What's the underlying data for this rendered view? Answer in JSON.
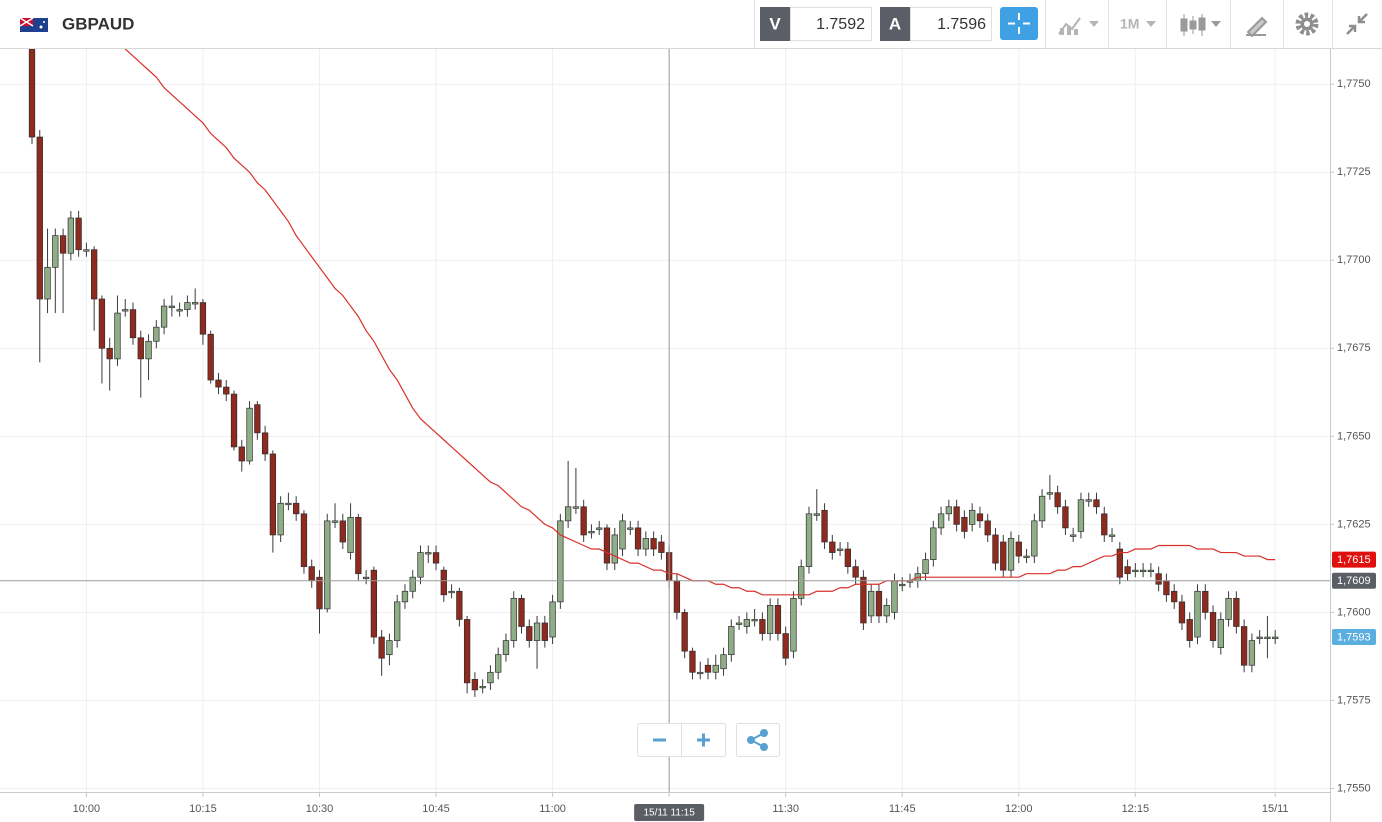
{
  "header": {
    "symbol": "GBPAUD",
    "bid_label": "V",
    "bid": "1.7592",
    "ask_label": "A",
    "ask": "1.7596",
    "timeframe": "1M"
  },
  "chart_data": {
    "type": "candlestick",
    "up_color": "#8fae87",
    "down_color": "#8e2a1e",
    "grid": true,
    "categories": [
      null,
      null,
      null,
      null,
      null,
      null,
      null,
      "10:00",
      null,
      null,
      null,
      null,
      null,
      null,
      null,
      null,
      null,
      null,
      null,
      null,
      null,
      null,
      "10:15",
      null,
      null,
      null,
      null,
      null,
      null,
      null,
      null,
      null,
      null,
      null,
      null,
      null,
      null,
      "10:30",
      null,
      null,
      null,
      null,
      null,
      null,
      null,
      null,
      null,
      null,
      null,
      null,
      null,
      null,
      "10:45",
      null,
      null,
      null,
      null,
      null,
      null,
      null,
      null,
      null,
      null,
      null,
      null,
      null,
      null,
      "11:00",
      null,
      null,
      null,
      null,
      null,
      null,
      null,
      null,
      null,
      null,
      null,
      null,
      null,
      null,
      "11:15",
      null,
      null,
      null,
      null,
      null,
      null,
      null,
      null,
      null,
      null,
      null,
      null,
      null,
      null,
      "11:30",
      null,
      null,
      null,
      null,
      null,
      null,
      null,
      null,
      null,
      null,
      null,
      null,
      null,
      null,
      "11:45",
      null,
      null,
      null,
      null,
      null,
      null,
      null,
      null,
      null,
      null,
      null,
      null,
      null,
      null,
      "12:00",
      null,
      null,
      null,
      null,
      null,
      null,
      null,
      null,
      null,
      null,
      null,
      null,
      null,
      null,
      "12:15",
      null,
      null,
      null,
      null,
      null,
      null,
      null,
      null,
      null,
      null,
      null,
      null,
      null,
      null,
      null,
      null,
      null,
      "15/11"
    ],
    "open": [
      1.776,
      1.7735,
      1.7689,
      1.7698,
      1.7707,
      1.7702,
      1.7712,
      1.7703,
      1.7703,
      1.7689,
      1.7675,
      1.7672,
      1.7686,
      1.7686,
      1.7678,
      1.7672,
      1.7677,
      1.7681,
      1.7687,
      1.7686,
      1.7686,
      1.7688,
      1.7688,
      1.7679,
      1.7666,
      1.7664,
      1.7662,
      1.7647,
      1.7643,
      1.7659,
      1.7651,
      1.7645,
      1.7622,
      1.7631,
      1.7631,
      1.7628,
      1.7613,
      1.761,
      1.7601,
      1.7626,
      1.7626,
      1.7617,
      1.7627,
      1.761,
      1.7612,
      1.7593,
      1.7588,
      1.7592,
      1.7603,
      1.7606,
      1.761,
      1.7617,
      1.7617,
      1.7612,
      1.7606,
      1.7606,
      1.7598,
      1.7581,
      1.7579,
      1.758,
      1.7583,
      1.7588,
      1.7592,
      1.7604,
      1.7596,
      1.7592,
      1.7597,
      1.7593,
      1.7603,
      1.7626,
      1.763,
      1.763,
      1.7623,
      1.7624,
      1.7624,
      1.7614,
      1.7618,
      1.7624,
      1.7624,
      1.7618,
      1.7621,
      1.762,
      1.7617,
      1.7609,
      1.76,
      1.7589,
      1.7583,
      1.7585,
      1.7583,
      1.7584,
      1.7588,
      1.7597,
      1.7596,
      1.7598,
      1.7598,
      1.7594,
      1.7602,
      1.7594,
      1.7589,
      1.7604,
      1.7613,
      1.7628,
      1.7629,
      1.762,
      1.7618,
      1.7618,
      1.7613,
      1.761,
      1.7599,
      1.7606,
      1.7599,
      1.76,
      1.7608,
      1.7609,
      1.7609,
      1.7611,
      1.7615,
      1.7624,
      1.7628,
      1.763,
      1.7627,
      1.7625,
      1.7628,
      1.7626,
      1.7622,
      1.762,
      1.7612,
      1.762,
      1.7616,
      1.7616,
      1.7626,
      1.7634,
      1.7634,
      1.763,
      1.7622,
      1.7623,
      1.7632,
      1.7632,
      1.7628,
      1.7622,
      1.7618,
      1.7613,
      1.7612,
      1.7612,
      1.7612,
      1.7611,
      1.7609,
      1.7606,
      1.7603,
      1.7598,
      1.7593,
      1.7606,
      1.76,
      1.759,
      1.7598,
      1.7604,
      1.7596,
      1.7585,
      1.7593,
      1.7593,
      1.7593
    ],
    "high": [
      1.7762,
      1.7737,
      1.7709,
      1.7709,
      1.7709,
      1.7714,
      1.7714,
      1.7705,
      1.7704,
      1.769,
      1.7678,
      1.769,
      1.7689,
      1.7688,
      1.768,
      1.7679,
      1.7683,
      1.7689,
      1.769,
      1.7688,
      1.769,
      1.7692,
      1.7689,
      1.768,
      1.7668,
      1.7666,
      1.7663,
      1.7649,
      1.766,
      1.766,
      1.7653,
      1.7646,
      1.7633,
      1.7634,
      1.7633,
      1.7629,
      1.7615,
      1.7612,
      1.7628,
      1.7631,
      1.7628,
      1.7631,
      1.7628,
      1.7612,
      1.7613,
      1.7595,
      1.7594,
      1.7605,
      1.7608,
      1.7612,
      1.7619,
      1.7619,
      1.7619,
      1.7613,
      1.7608,
      1.7607,
      1.7599,
      1.7583,
      1.7581,
      1.7585,
      1.759,
      1.7594,
      1.7606,
      1.7605,
      1.7598,
      1.7599,
      1.7599,
      1.7605,
      1.7628,
      1.7643,
      1.7641,
      1.7632,
      1.7625,
      1.7626,
      1.7625,
      1.7624,
      1.7628,
      1.7626,
      1.7626,
      1.7623,
      1.7623,
      1.7622,
      1.7619,
      1.7611,
      1.7601,
      1.759,
      1.7586,
      1.7587,
      1.7588,
      1.759,
      1.7598,
      1.7599,
      1.76,
      1.7601,
      1.76,
      1.7604,
      1.7604,
      1.7596,
      1.7606,
      1.7615,
      1.763,
      1.7635,
      1.7631,
      1.7622,
      1.762,
      1.762,
      1.7615,
      1.7612,
      1.7608,
      1.7608,
      1.7604,
      1.7611,
      1.761,
      1.7611,
      1.7613,
      1.7617,
      1.7626,
      1.763,
      1.7632,
      1.7632,
      1.7629,
      1.7631,
      1.763,
      1.7628,
      1.7624,
      1.7622,
      1.7623,
      1.7622,
      1.7618,
      1.7628,
      1.7635,
      1.7639,
      1.7636,
      1.7632,
      1.7624,
      1.7634,
      1.7634,
      1.7634,
      1.763,
      1.7624,
      1.762,
      1.7615,
      1.7614,
      1.7614,
      1.7614,
      1.7613,
      1.7611,
      1.7608,
      1.7605,
      1.76,
      1.7608,
      1.7608,
      1.7602,
      1.76,
      1.7606,
      1.7606,
      1.7598,
      1.7594,
      1.7595,
      1.7599,
      1.7595
    ],
    "low": [
      1.7733,
      1.7671,
      1.7685,
      1.7685,
      1.7685,
      1.77,
      1.7701,
      1.7701,
      1.768,
      1.7665,
      1.7663,
      1.767,
      1.7684,
      1.7676,
      1.7661,
      1.7666,
      1.7675,
      1.7679,
      1.7684,
      1.7684,
      1.7684,
      1.7686,
      1.7676,
      1.7665,
      1.7662,
      1.766,
      1.7646,
      1.764,
      1.7642,
      1.7649,
      1.7643,
      1.7617,
      1.762,
      1.7629,
      1.7626,
      1.7611,
      1.7607,
      1.7594,
      1.76,
      1.7624,
      1.7618,
      1.7615,
      1.7609,
      1.7608,
      1.7591,
      1.7582,
      1.7585,
      1.759,
      1.7601,
      1.7604,
      1.7608,
      1.7614,
      1.7612,
      1.7603,
      1.7604,
      1.7596,
      1.7577,
      1.7576,
      1.7577,
      1.7578,
      1.7581,
      1.7586,
      1.759,
      1.7594,
      1.759,
      1.7584,
      1.759,
      1.7591,
      1.7601,
      1.7624,
      1.7628,
      1.762,
      1.7621,
      1.7622,
      1.7612,
      1.7612,
      1.7616,
      1.7622,
      1.7616,
      1.7616,
      1.7616,
      1.7615,
      1.7607,
      1.7598,
      1.7587,
      1.7581,
      1.7581,
      1.7581,
      1.7581,
      1.7582,
      1.7586,
      1.7595,
      1.7594,
      1.7596,
      1.7592,
      1.7592,
      1.7592,
      1.7585,
      1.7587,
      1.7602,
      1.7611,
      1.7626,
      1.7618,
      1.7615,
      1.7616,
      1.7611,
      1.7608,
      1.7595,
      1.7597,
      1.7597,
      1.7597,
      1.7598,
      1.7606,
      1.7607,
      1.7607,
      1.7609,
      1.7613,
      1.7622,
      1.7626,
      1.7623,
      1.7621,
      1.7623,
      1.7624,
      1.762,
      1.7612,
      1.761,
      1.761,
      1.7614,
      1.7614,
      1.7614,
      1.7624,
      1.7632,
      1.7628,
      1.7622,
      1.762,
      1.7621,
      1.763,
      1.7628,
      1.762,
      1.762,
      1.7608,
      1.7609,
      1.761,
      1.761,
      1.761,
      1.7606,
      1.7603,
      1.7601,
      1.7595,
      1.759,
      1.7591,
      1.7598,
      1.759,
      1.7588,
      1.7596,
      1.7594,
      1.7583,
      1.7583,
      1.7591,
      1.7587,
      1.7591
    ],
    "close": [
      1.7735,
      1.7689,
      1.7698,
      1.7707,
      1.7702,
      1.7712,
      1.7703,
      1.7703,
      1.7689,
      1.7675,
      1.7672,
      1.7685,
      1.7686,
      1.7678,
      1.7672,
      1.7677,
      1.7681,
      1.7687,
      1.7687,
      1.7686,
      1.7688,
      1.7688,
      1.7679,
      1.7666,
      1.7664,
      1.7662,
      1.7647,
      1.7643,
      1.7658,
      1.7651,
      1.7645,
      1.7622,
      1.7631,
      1.7631,
      1.7628,
      1.7613,
      1.7609,
      1.7601,
      1.7626,
      1.7626,
      1.762,
      1.7627,
      1.7611,
      1.761,
      1.7593,
      1.7587,
      1.7592,
      1.7603,
      1.7606,
      1.761,
      1.7617,
      1.7617,
      1.7614,
      1.7605,
      1.7606,
      1.7598,
      1.758,
      1.7578,
      1.7579,
      1.7583,
      1.7588,
      1.7592,
      1.7604,
      1.7596,
      1.7592,
      1.7597,
      1.7592,
      1.7603,
      1.7626,
      1.763,
      1.763,
      1.7622,
      1.7623,
      1.7624,
      1.7614,
      1.7622,
      1.7626,
      1.7624,
      1.7618,
      1.7621,
      1.7618,
      1.7617,
      1.7609,
      1.76,
      1.7589,
      1.7583,
      1.7583,
      1.7583,
      1.7585,
      1.7588,
      1.7596,
      1.7597,
      1.7598,
      1.7598,
      1.7594,
      1.7602,
      1.7594,
      1.7587,
      1.7604,
      1.7613,
      1.7628,
      1.7628,
      1.762,
      1.7617,
      1.7618,
      1.7613,
      1.761,
      1.7597,
      1.7606,
      1.7599,
      1.7602,
      1.7609,
      1.7608,
      1.7609,
      1.7611,
      1.7615,
      1.7624,
      1.7628,
      1.763,
      1.7625,
      1.7623,
      1.7629,
      1.7626,
      1.7622,
      1.7614,
      1.7612,
      1.7621,
      1.7616,
      1.7616,
      1.7626,
      1.7633,
      1.7634,
      1.763,
      1.7624,
      1.7622,
      1.7632,
      1.7632,
      1.763,
      1.7622,
      1.7622,
      1.761,
      1.7611,
      1.7612,
      1.7612,
      1.7612,
      1.7608,
      1.7605,
      1.7603,
      1.7597,
      1.7592,
      1.7606,
      1.76,
      1.7592,
      1.7598,
      1.7604,
      1.7596,
      1.7585,
      1.7592,
      1.7593,
      1.7593,
      1.7593
    ],
    "moving_average": {
      "color": "#d9302a",
      "values": [
        null,
        null,
        null,
        null,
        null,
        null,
        null,
        null,
        null,
        null,
        null,
        null,
        1.776,
        1.7758,
        1.7756,
        1.7754,
        1.7752,
        1.7749,
        1.7747,
        1.7745,
        1.7743,
        1.7741,
        1.7739,
        1.7736,
        1.7734,
        1.7732,
        1.7729,
        1.7727,
        1.7725,
        1.7722,
        1.772,
        1.7717,
        1.7714,
        1.7711,
        1.7707,
        1.7704,
        1.7701,
        1.7698,
        1.7695,
        1.7692,
        1.769,
        1.7687,
        1.7684,
        1.768,
        1.7677,
        1.7673,
        1.7669,
        1.7666,
        1.7662,
        1.7658,
        1.7655,
        1.7653,
        1.7651,
        1.7649,
        1.7647,
        1.7645,
        1.7643,
        1.7641,
        1.7639,
        1.7637,
        1.7636,
        1.7634,
        1.7632,
        1.763,
        1.7629,
        1.7627,
        1.7625,
        1.7624,
        1.7622,
        1.7621,
        1.762,
        1.7619,
        1.7618,
        1.7618,
        1.7617,
        1.7616,
        1.7615,
        1.7614,
        1.7614,
        1.7613,
        1.7612,
        1.7612,
        1.7611,
        1.7611,
        1.761,
        1.7609,
        1.7609,
        1.7609,
        1.7608,
        1.7608,
        1.7607,
        1.7607,
        1.7606,
        1.7606,
        1.7605,
        1.7605,
        1.7605,
        1.7605,
        1.7605,
        1.7605,
        1.7605,
        1.7606,
        1.7606,
        1.7606,
        1.7607,
        1.7607,
        1.7608,
        1.7608,
        1.7608,
        1.7608,
        1.7609,
        1.7609,
        1.7609,
        1.7609,
        1.761,
        1.761,
        1.761,
        1.761,
        1.761,
        1.761,
        1.761,
        1.761,
        1.761,
        1.761,
        1.761,
        1.761,
        1.761,
        1.761,
        1.7611,
        1.7611,
        1.7611,
        1.7611,
        1.7612,
        1.7612,
        1.7613,
        1.7613,
        1.7614,
        1.7615,
        1.7616,
        1.7616,
        1.7617,
        1.7617,
        1.7618,
        1.7618,
        1.7618,
        1.7619,
        1.7619,
        1.7619,
        1.7619,
        1.7619,
        1.7618,
        1.7618,
        1.7618,
        1.7617,
        1.7617,
        1.7617,
        1.7616,
        1.7616,
        1.7616,
        1.7615,
        1.7615
      ]
    },
    "ylim": [
      1.7549,
      1.776
    ],
    "yticks": [
      {
        "value": 1.755,
        "label": "1,7550"
      },
      {
        "value": 1.7575,
        "label": "1,7575"
      },
      {
        "value": 1.76,
        "label": "1,7600"
      },
      {
        "value": 1.7625,
        "label": "1,7625"
      },
      {
        "value": 1.765,
        "label": "1,7650"
      },
      {
        "value": 1.7675,
        "label": "1,7675"
      },
      {
        "value": 1.77,
        "label": "1,7700"
      },
      {
        "value": 1.7725,
        "label": "1,7725"
      },
      {
        "value": 1.775,
        "label": "1,7750"
      }
    ],
    "price_tags": [
      {
        "value": 1.7615,
        "label": "1,7615",
        "color": "#e0100f"
      },
      {
        "value": 1.7609,
        "label": "1,7609",
        "color": "#5b5e64"
      },
      {
        "value": 1.7593,
        "label": "1,7593",
        "color": "#5aaee0"
      }
    ],
    "crosshair": {
      "value": 1.7609,
      "x_label": "15/11 11:15"
    }
  }
}
